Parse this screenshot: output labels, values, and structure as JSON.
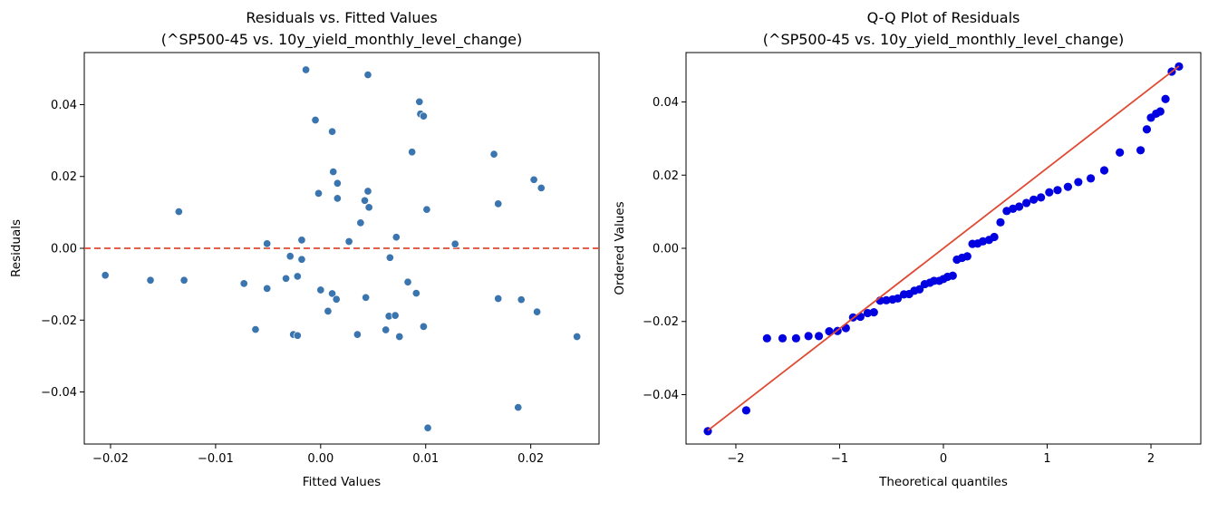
{
  "chart_data": [
    {
      "type": "scatter",
      "title": "Residuals vs. Fitted Values",
      "subtitle": "(^SP500-45 vs. 10y_yield_monthly_level_change)",
      "xlabel": "Fitted Values",
      "ylabel": "Residuals",
      "xlim": [
        -0.0225,
        0.0265
      ],
      "ylim": [
        -0.0545,
        0.0545
      ],
      "xticks": [
        -0.02,
        -0.01,
        0.0,
        0.01,
        0.02
      ],
      "xtick_labels": [
        "−0.02",
        "−0.01",
        "0.00",
        "0.01",
        "0.02"
      ],
      "yticks": [
        -0.04,
        -0.02,
        0.0,
        0.02,
        0.04
      ],
      "ytick_labels": [
        "−0.04",
        "−0.02",
        "0.00",
        "0.02",
        "0.04"
      ],
      "grid": false,
      "point_color": "#3a75b0",
      "reference_line": {
        "y": 0.0,
        "style": "dashed",
        "color": "#e04a32"
      },
      "points": [
        [
          -0.0205,
          -0.0075
        ],
        [
          -0.0162,
          -0.0089
        ],
        [
          -0.0135,
          0.0102
        ],
        [
          -0.013,
          -0.0089
        ],
        [
          -0.0073,
          -0.0098
        ],
        [
          -0.0062,
          -0.0226
        ],
        [
          -0.0051,
          0.0013
        ],
        [
          -0.0051,
          -0.0112
        ],
        [
          -0.0033,
          -0.0084
        ],
        [
          -0.0029,
          -0.0022
        ],
        [
          -0.0026,
          -0.024
        ],
        [
          -0.0022,
          -0.0243
        ],
        [
          -0.0022,
          -0.0078
        ],
        [
          -0.0018,
          0.0023
        ],
        [
          -0.0018,
          -0.0031
        ],
        [
          -0.0014,
          0.0497
        ],
        [
          -0.0005,
          0.0357
        ],
        [
          -0.0002,
          0.0153
        ],
        [
          0.0,
          -0.0116
        ],
        [
          0.0007,
          -0.0175
        ],
        [
          0.0011,
          0.0325
        ],
        [
          0.0011,
          -0.0126
        ],
        [
          0.0012,
          0.0213
        ],
        [
          0.0015,
          -0.0142
        ],
        [
          0.0016,
          0.0181
        ],
        [
          0.0016,
          0.0139
        ],
        [
          0.0027,
          0.0019
        ],
        [
          0.0035,
          -0.024
        ],
        [
          0.0038,
          0.0071
        ],
        [
          0.0042,
          0.0133
        ],
        [
          0.0043,
          -0.0137
        ],
        [
          0.0045,
          0.0483
        ],
        [
          0.0045,
          0.0159
        ],
        [
          0.0046,
          0.0114
        ],
        [
          0.0062,
          -0.0227
        ],
        [
          0.0065,
          -0.0189
        ],
        [
          0.0066,
          -0.0026
        ],
        [
          0.0071,
          -0.0187
        ],
        [
          0.0072,
          0.0031
        ],
        [
          0.0075,
          -0.0246
        ],
        [
          0.0083,
          -0.0094
        ],
        [
          0.0087,
          0.0268
        ],
        [
          0.0091,
          -0.0125
        ],
        [
          0.0094,
          0.0408
        ],
        [
          0.0095,
          0.0374
        ],
        [
          0.0098,
          0.0368
        ],
        [
          0.0098,
          -0.0218
        ],
        [
          0.0101,
          0.0108
        ],
        [
          0.0102,
          -0.05
        ],
        [
          0.0128,
          0.0012
        ],
        [
          0.0165,
          0.0262
        ],
        [
          0.0169,
          -0.014
        ],
        [
          0.0169,
          0.0124
        ],
        [
          0.0188,
          -0.0443
        ],
        [
          0.0191,
          -0.0143
        ],
        [
          0.0203,
          0.0191
        ],
        [
          0.0206,
          -0.0177
        ],
        [
          0.021,
          0.0168
        ],
        [
          0.0244,
          -0.0246
        ]
      ]
    },
    {
      "type": "scatter",
      "title": "Q-Q Plot of Residuals",
      "subtitle": "(^SP500-45 vs. 10y_yield_monthly_level_change)",
      "xlabel": "Theoretical quantiles",
      "ylabel": "Ordered Values",
      "xlim": [
        -2.48,
        2.48
      ],
      "ylim": [
        -0.0535,
        0.0535
      ],
      "xticks": [
        -2,
        -1,
        0,
        1,
        2
      ],
      "xtick_labels": [
        "−2",
        "−1",
        "0",
        "1",
        "2"
      ],
      "yticks": [
        -0.04,
        -0.02,
        0.0,
        0.02,
        0.04
      ],
      "ytick_labels": [
        "−0.04",
        "−0.02",
        "0.00",
        "0.02",
        "0.04"
      ],
      "grid": false,
      "point_color": "#0000e0",
      "fit_line": {
        "x": [
          -2.27,
          2.27
        ],
        "y": [
          -0.0498,
          0.0498
        ],
        "color": "#e04a32"
      },
      "points": [
        [
          -2.27,
          -0.05
        ],
        [
          -1.9,
          -0.0443
        ],
        [
          -1.7,
          -0.0246
        ],
        [
          -1.55,
          -0.0246
        ],
        [
          -1.42,
          -0.0246
        ],
        [
          -1.3,
          -0.024
        ],
        [
          -1.2,
          -0.024
        ],
        [
          -1.1,
          -0.0227
        ],
        [
          -1.02,
          -0.0226
        ],
        [
          -0.94,
          -0.0218
        ],
        [
          -0.87,
          -0.0189
        ],
        [
          -0.8,
          -0.0187
        ],
        [
          -0.73,
          -0.0177
        ],
        [
          -0.67,
          -0.0175
        ],
        [
          -0.61,
          -0.0143
        ],
        [
          -0.55,
          -0.0142
        ],
        [
          -0.49,
          -0.014
        ],
        [
          -0.44,
          -0.0137
        ],
        [
          -0.38,
          -0.0126
        ],
        [
          -0.33,
          -0.0125
        ],
        [
          -0.28,
          -0.0116
        ],
        [
          -0.23,
          -0.0112
        ],
        [
          -0.18,
          -0.0098
        ],
        [
          -0.13,
          -0.0094
        ],
        [
          -0.09,
          -0.0089
        ],
        [
          -0.04,
          -0.0089
        ],
        [
          0.0,
          -0.0084
        ],
        [
          0.04,
          -0.0078
        ],
        [
          0.09,
          -0.0075
        ],
        [
          0.13,
          -0.0031
        ],
        [
          0.18,
          -0.0026
        ],
        [
          0.23,
          -0.0022
        ],
        [
          0.28,
          0.0012
        ],
        [
          0.33,
          0.0013
        ],
        [
          0.38,
          0.0019
        ],
        [
          0.44,
          0.0023
        ],
        [
          0.49,
          0.0031
        ],
        [
          0.55,
          0.0071
        ],
        [
          0.61,
          0.0102
        ],
        [
          0.67,
          0.0108
        ],
        [
          0.73,
          0.0114
        ],
        [
          0.8,
          0.0124
        ],
        [
          0.87,
          0.0133
        ],
        [
          0.94,
          0.0139
        ],
        [
          1.02,
          0.0153
        ],
        [
          1.1,
          0.0159
        ],
        [
          1.2,
          0.0168
        ],
        [
          1.3,
          0.0181
        ],
        [
          1.42,
          0.0191
        ],
        [
          1.55,
          0.0213
        ],
        [
          1.7,
          0.0262
        ],
        [
          1.9,
          0.0268
        ],
        [
          1.96,
          0.0325
        ],
        [
          2.0,
          0.0357
        ],
        [
          2.05,
          0.0368
        ],
        [
          2.09,
          0.0374
        ],
        [
          2.14,
          0.0408
        ],
        [
          2.2,
          0.0483
        ],
        [
          2.27,
          0.0497
        ]
      ]
    }
  ]
}
